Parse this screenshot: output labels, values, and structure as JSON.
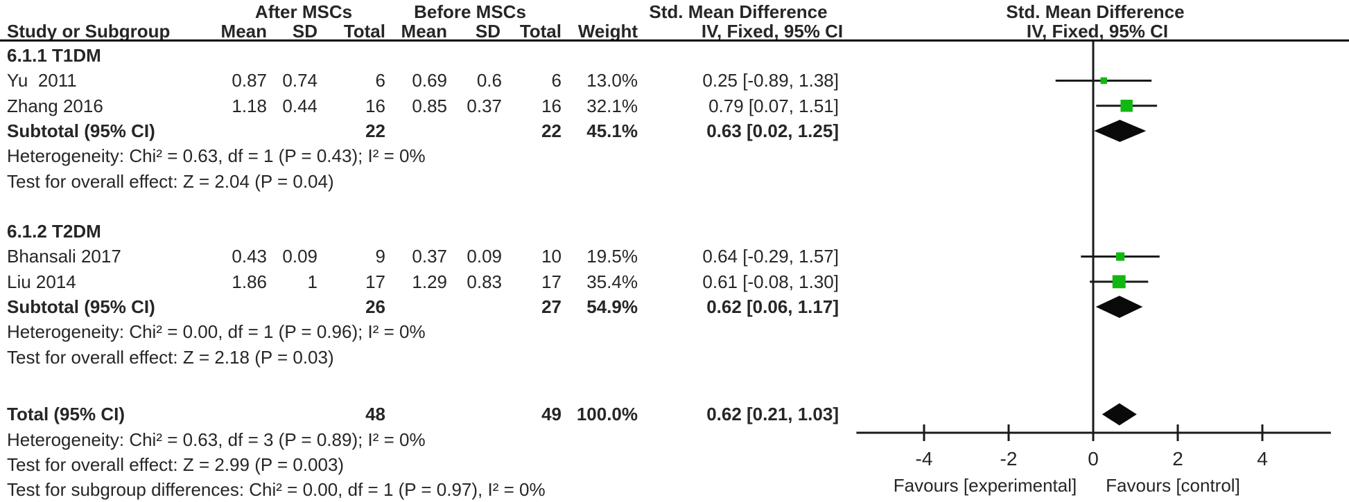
{
  "figure": {
    "background": "#ffffff",
    "square_color": "#12b712",
    "diamond_color": "#0a0a0a",
    "line_color": "#1a1a1a"
  },
  "header": {
    "group_after": "After MSCs",
    "group_before": "Before MSCs",
    "smd_left": "Std. Mean Difference",
    "smd_right": "Std. Mean Difference",
    "col_study": "Study or Subgroup",
    "col_mean_after": "Mean",
    "col_sd_after": "SD",
    "col_total_after": "Total",
    "col_mean_before": "Mean",
    "col_sd_before": "SD",
    "col_total_before": "Total",
    "col_weight": "Weight",
    "col_ci_left": "IV, Fixed, 95% CI",
    "col_ci_right": "IV, Fixed, 95% CI"
  },
  "chart_data": {
    "type": "forest",
    "effect_measure": "Std. Mean Difference",
    "method": "IV, Fixed, 95% CI",
    "x_axis": {
      "ticks": [
        -4,
        -2,
        0,
        2,
        4
      ],
      "xlim": [
        -5.6,
        5.62
      ],
      "zero": 0,
      "favours_left": "Favours [experimental]",
      "favours_right": "Favours [control]"
    },
    "subgroups": [
      {
        "label": "6.1.1 T1DM",
        "studies": [
          {
            "study": "Yu  2011",
            "after_mean": "0.87",
            "after_sd": "0.74",
            "after_total": "6",
            "before_mean": "0.69",
            "before_sd": "0.6",
            "before_total": "6",
            "weight": "13.0%",
            "smd": 0.25,
            "ci_low": -0.89,
            "ci_high": 1.38,
            "ci_text": "0.25 [-0.89, 1.38]"
          },
          {
            "study": "Zhang 2016",
            "after_mean": "1.18",
            "after_sd": "0.44",
            "after_total": "16",
            "before_mean": "0.85",
            "before_sd": "0.37",
            "before_total": "16",
            "weight": "32.1%",
            "smd": 0.79,
            "ci_low": 0.07,
            "ci_high": 1.51,
            "ci_text": "0.79 [0.07, 1.51]"
          }
        ],
        "subtotal": {
          "label": "Subtotal (95% CI)",
          "after_total": "22",
          "before_total": "22",
          "weight": "45.1%",
          "smd": 0.63,
          "ci_low": 0.02,
          "ci_high": 1.25,
          "ci_text": "0.63 [0.02, 1.25]"
        },
        "heterogeneity": "Heterogeneity: Chi² = 0.63, df = 1 (P = 0.43); I² = 0%",
        "overall_effect": "Test for overall effect: Z = 2.04 (P = 0.04)"
      },
      {
        "label": "6.1.2 T2DM",
        "studies": [
          {
            "study": "Bhansali 2017",
            "after_mean": "0.43",
            "after_sd": "0.09",
            "after_total": "9",
            "before_mean": "0.37",
            "before_sd": "0.09",
            "before_total": "10",
            "weight": "19.5%",
            "smd": 0.64,
            "ci_low": -0.29,
            "ci_high": 1.57,
            "ci_text": "0.64 [-0.29, 1.57]"
          },
          {
            "study": "Liu 2014",
            "after_mean": "1.86",
            "after_sd": "1",
            "after_total": "17",
            "before_mean": "1.29",
            "before_sd": "0.83",
            "before_total": "17",
            "weight": "35.4%",
            "smd": 0.61,
            "ci_low": -0.08,
            "ci_high": 1.3,
            "ci_text": "0.61 [-0.08, 1.30]"
          }
        ],
        "subtotal": {
          "label": "Subtotal (95% CI)",
          "after_total": "26",
          "before_total": "27",
          "weight": "54.9%",
          "smd": 0.62,
          "ci_low": 0.06,
          "ci_high": 1.17,
          "ci_text": "0.62 [0.06, 1.17]"
        },
        "heterogeneity": "Heterogeneity: Chi² = 0.00, df = 1 (P = 0.96); I² = 0%",
        "overall_effect": "Test for overall effect: Z = 2.18 (P = 0.03)"
      }
    ],
    "total": {
      "label": "Total (95% CI)",
      "after_total": "48",
      "before_total": "49",
      "weight": "100.0%",
      "smd": 0.62,
      "ci_low": 0.21,
      "ci_high": 1.03,
      "ci_text": "0.62 [0.21, 1.03]",
      "heterogeneity": "Heterogeneity: Chi² = 0.63, df = 3 (P = 0.89); I² = 0%",
      "overall_effect": "Test for overall effect: Z = 2.99 (P = 0.003)",
      "subgroup_differences": "Test for subgroup differences: Chi² = 0.00, df = 1 (P = 0.97), I² = 0%"
    }
  }
}
